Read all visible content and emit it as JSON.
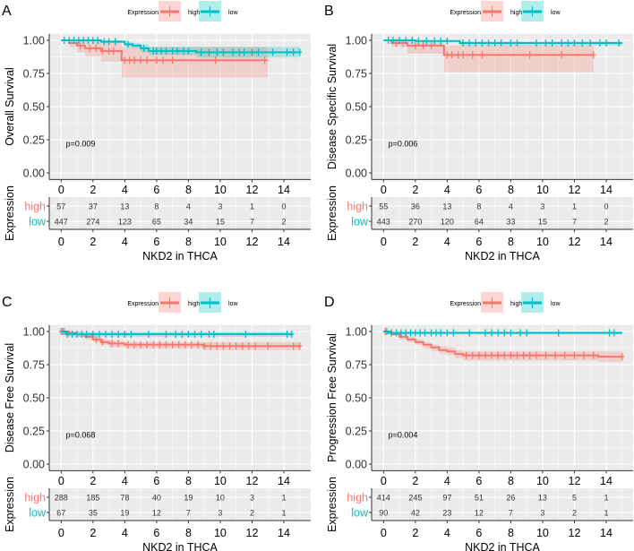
{
  "colors": {
    "high": "#F8766D",
    "low": "#00BFC4",
    "panel_bg": "#EBEBEB",
    "grid": "#FFFFFF",
    "text": "#4D4D4D"
  },
  "chart_data": [
    {
      "type": "line",
      "panel_label": "A",
      "ylabel": "Overall Survival",
      "xlabel": "NKD2 in THCA",
      "legend": {
        "title": "Expression",
        "entries": [
          "high",
          "low"
        ],
        "position": "top"
      },
      "p_value": "p=0.009",
      "xlim": [
        -0.75,
        15.7
      ],
      "ylim": [
        -0.05,
        1.05
      ],
      "xticks": [
        0,
        2,
        4,
        6,
        8,
        10,
        12,
        14
      ],
      "yticks": [
        "0.00",
        "0.25",
        "0.50",
        "0.75",
        "1.00"
      ],
      "grid": true,
      "series": [
        {
          "name": "high",
          "steps": [
            [
              0,
              1,
              1,
              1
            ],
            [
              0.5,
              0.98,
              0.95,
              1
            ],
            [
              1,
              0.96,
              0.91,
              1
            ],
            [
              1.5,
              0.94,
              0.88,
              1
            ],
            [
              2.5,
              0.92,
              0.84,
              1
            ],
            [
              3.8,
              0.85,
              0.72,
              0.95
            ],
            [
              13,
              0.85,
              0.72,
              0.95
            ]
          ],
          "censors": [
            1.2,
            1.8,
            2.2,
            2.6,
            3.0,
            3.3,
            4.0,
            4.3,
            4.6,
            5.0,
            5.4,
            6.0,
            6.4,
            7.0,
            9.7,
            12.8
          ]
        },
        {
          "name": "low",
          "steps": [
            [
              0,
              1,
              1,
              1
            ],
            [
              2.5,
              0.99,
              0.98,
              1
            ],
            [
              4,
              0.97,
              0.95,
              0.99
            ],
            [
              4.5,
              0.96,
              0.94,
              0.98
            ],
            [
              5,
              0.94,
              0.91,
              0.97
            ],
            [
              5.5,
              0.92,
              0.89,
              0.95
            ],
            [
              8.5,
              0.91,
              0.87,
              0.95
            ],
            [
              15,
              0.91,
              0.87,
              0.95
            ]
          ],
          "censors": [
            0.2,
            0.5,
            0.8,
            1.1,
            1.4,
            1.7,
            2.0,
            2.3,
            2.7,
            3.0,
            3.4,
            4.2,
            5.2,
            5.8,
            6.0,
            6.3,
            6.6,
            7.0,
            7.3,
            7.7,
            8.0,
            8.8,
            9.3,
            9.8,
            10.2,
            10.8,
            11.2,
            11.5,
            12.0,
            12.4,
            13.3,
            14.2,
            14.6,
            15.0
          ]
        }
      ],
      "risk_table": {
        "title": "Expression",
        "times": [
          0,
          2,
          4,
          6,
          8,
          10,
          12,
          14
        ],
        "rows": [
          {
            "label": "high",
            "values": [
              57,
              37,
              13,
              8,
              4,
              3,
              1,
              0
            ]
          },
          {
            "label": "low",
            "values": [
              447,
              274,
              123,
              65,
              34,
              15,
              7,
              2
            ]
          }
        ]
      }
    },
    {
      "type": "line",
      "panel_label": "B",
      "ylabel": "Disease Specific Survival",
      "xlabel": "NKD2 in THCA",
      "legend": {
        "title": "Expression",
        "entries": [
          "high",
          "low"
        ],
        "position": "top"
      },
      "p_value": "p=0.006",
      "xlim": [
        -0.75,
        15.7
      ],
      "ylim": [
        -0.05,
        1.05
      ],
      "xticks": [
        0,
        2,
        4,
        6,
        8,
        10,
        12,
        14
      ],
      "yticks": [
        "0.00",
        "0.25",
        "0.50",
        "0.75",
        "1.00"
      ],
      "grid": true,
      "series": [
        {
          "name": "high",
          "steps": [
            [
              0,
              1,
              1,
              1
            ],
            [
              0.5,
              0.98,
              0.95,
              1
            ],
            [
              1.5,
              0.96,
              0.9,
              1
            ],
            [
              3.8,
              0.89,
              0.76,
              0.96
            ],
            [
              13.2,
              0.89,
              0.76,
              0.96
            ]
          ],
          "censors": [
            0.8,
            1.2,
            2.0,
            2.5,
            3.0,
            4.0,
            4.3,
            4.7,
            5.0,
            5.6,
            6.2,
            9.2,
            11.2,
            13.2
          ]
        },
        {
          "name": "low",
          "steps": [
            [
              0,
              1,
              1,
              1
            ],
            [
              2,
              0.995,
              0.99,
              1
            ],
            [
              4.8,
              0.98,
              0.96,
              0.99
            ],
            [
              15,
              0.98,
              0.96,
              0.99
            ]
          ],
          "censors": [
            0.3,
            0.6,
            1.0,
            1.4,
            1.8,
            2.2,
            2.7,
            3.2,
            3.6,
            4.0,
            5.0,
            5.4,
            5.8,
            6.2,
            6.6,
            7.0,
            7.4,
            8.0,
            8.4,
            9.6,
            10.2,
            10.6,
            11.2,
            11.6,
            12.0,
            12.5,
            13.0,
            13.6,
            14.0,
            14.8
          ]
        }
      ],
      "risk_table": {
        "title": "Expression",
        "times": [
          0,
          2,
          4,
          6,
          8,
          10,
          12,
          14
        ],
        "rows": [
          {
            "label": "high",
            "values": [
              55,
              36,
              13,
              8,
              4,
              3,
              1,
              0
            ]
          },
          {
            "label": "low",
            "values": [
              443,
              270,
              120,
              64,
              33,
              15,
              7,
              2
            ]
          }
        ]
      }
    },
    {
      "type": "line",
      "panel_label": "C",
      "ylabel": "Disease Free Survival",
      "xlabel": "NKD2 in THCA",
      "legend": {
        "title": "Expression",
        "entries": [
          "high",
          "low"
        ],
        "position": "top"
      },
      "p_value": "p=0.068",
      "xlim": [
        -0.75,
        15.7
      ],
      "ylim": [
        -0.05,
        1.05
      ],
      "xticks": [
        0,
        2,
        4,
        6,
        8,
        10,
        12,
        14
      ],
      "yticks": [
        "0.00",
        "0.25",
        "0.50",
        "0.75",
        "1.00"
      ],
      "grid": true,
      "series": [
        {
          "name": "high",
          "steps": [
            [
              0,
              1,
              1,
              1
            ],
            [
              0.5,
              0.99,
              0.98,
              1
            ],
            [
              1,
              0.98,
              0.96,
              0.99
            ],
            [
              1.5,
              0.96,
              0.94,
              0.98
            ],
            [
              2,
              0.94,
              0.92,
              0.96
            ],
            [
              2.5,
              0.92,
              0.9,
              0.94
            ],
            [
              3,
              0.91,
              0.88,
              0.93
            ],
            [
              4,
              0.9,
              0.87,
              0.92
            ],
            [
              9,
              0.89,
              0.86,
              0.92
            ],
            [
              15,
              0.89,
              0.85,
              0.93
            ]
          ],
          "censors": [
            0,
            0.2,
            2.2,
            2.6,
            3.2,
            3.6,
            4.2,
            4.6,
            5.0,
            5.4,
            5.8,
            6.2,
            6.6,
            7.0,
            7.4,
            7.8,
            8.2,
            8.6,
            9.0,
            9.4,
            9.8,
            10.2,
            10.6,
            11.0,
            11.4,
            11.8,
            12.2,
            13.0,
            14.6,
            15.0
          ]
        },
        {
          "name": "low",
          "steps": [
            [
              0,
              1,
              1,
              1
            ],
            [
              0.3,
              0.98,
              0.96,
              1
            ],
            [
              14.5,
              0.98,
              0.96,
              1
            ]
          ],
          "censors": [
            0.1,
            0.4,
            0.7,
            1.0,
            1.3,
            1.6,
            2.0,
            2.4,
            2.8,
            3.2,
            3.6,
            4.0,
            4.4,
            5.5,
            6.6,
            7.2,
            7.6,
            8.0,
            8.4,
            8.8,
            9.3,
            9.6,
            11.6,
            14.2,
            14.5
          ]
        }
      ],
      "risk_table": {
        "title": "Expression",
        "times": [
          0,
          2,
          4,
          6,
          8,
          10,
          12,
          14
        ],
        "rows": [
          {
            "label": "high",
            "values": [
              288,
              185,
              78,
              40,
              19,
              10,
              3,
              1
            ]
          },
          {
            "label": "low",
            "values": [
              67,
              35,
              19,
              12,
              7,
              3,
              2,
              1
            ]
          }
        ]
      }
    },
    {
      "type": "line",
      "panel_label": "D",
      "ylabel": "Progression Free Survival",
      "xlabel": "NKD2 in THCA",
      "legend": {
        "title": "Expression",
        "entries": [
          "high",
          "low"
        ],
        "position": "top"
      },
      "p_value": "p=0.004",
      "xlim": [
        -0.75,
        15.7
      ],
      "ylim": [
        -0.05,
        1.05
      ],
      "xticks": [
        0,
        2,
        4,
        6,
        8,
        10,
        12,
        14
      ],
      "yticks": [
        "0.00",
        "0.25",
        "0.50",
        "0.75",
        "1.00"
      ],
      "grid": true,
      "series": [
        {
          "name": "high",
          "steps": [
            [
              0,
              1,
              1,
              1
            ],
            [
              0.5,
              0.98,
              0.97,
              0.99
            ],
            [
              1,
              0.96,
              0.94,
              0.98
            ],
            [
              1.5,
              0.94,
              0.92,
              0.96
            ],
            [
              2,
              0.92,
              0.9,
              0.94
            ],
            [
              2.5,
              0.9,
              0.87,
              0.92
            ],
            [
              3,
              0.88,
              0.85,
              0.9
            ],
            [
              3.5,
              0.86,
              0.83,
              0.89
            ],
            [
              4,
              0.85,
              0.82,
              0.88
            ],
            [
              4.5,
              0.83,
              0.8,
              0.86
            ],
            [
              5,
              0.82,
              0.78,
              0.85
            ],
            [
              13.5,
              0.81,
              0.77,
              0.85
            ],
            [
              15,
              0.81,
              0.77,
              0.85
            ]
          ],
          "censors": [
            0.1,
            5.2,
            5.6,
            6.0,
            6.4,
            6.8,
            7.2,
            7.6,
            8.0,
            8.4,
            8.8,
            9.2,
            9.6,
            10.2,
            10.8,
            11.4,
            12.0,
            12.6,
            13.2,
            15.0
          ]
        },
        {
          "name": "low",
          "steps": [
            [
              0,
              1,
              1,
              1
            ],
            [
              0.3,
              0.99,
              0.98,
              1
            ],
            [
              15,
              0.99,
              0.98,
              1
            ]
          ],
          "censors": [
            0.2,
            0.5,
            0.8,
            1.1,
            1.4,
            1.7,
            2.0,
            2.3,
            2.6,
            3.0,
            3.3,
            3.6,
            4.0,
            4.4,
            5.4,
            6.4,
            6.8,
            7.2,
            7.6,
            8.0,
            8.6,
            9.0,
            11.0,
            14.2,
            14.5
          ]
        }
      ],
      "risk_table": {
        "title": "Expression",
        "times": [
          0,
          2,
          4,
          6,
          8,
          10,
          12,
          14
        ],
        "rows": [
          {
            "label": "high",
            "values": [
              414,
              245,
              97,
              51,
              26,
              13,
              5,
              1
            ]
          },
          {
            "label": "low",
            "values": [
              90,
              42,
              23,
              12,
              7,
              3,
              2,
              1
            ]
          }
        ]
      }
    }
  ]
}
